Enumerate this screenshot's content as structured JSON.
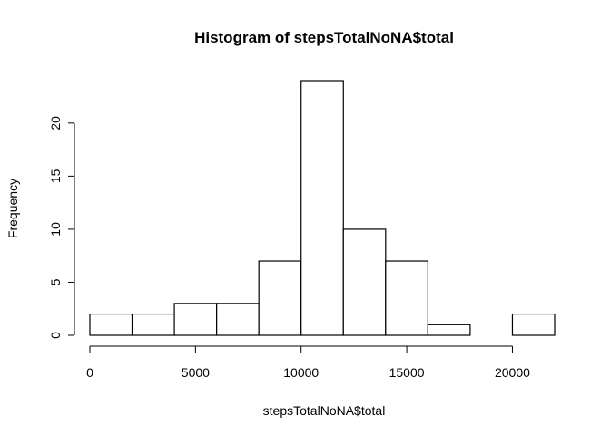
{
  "chart_data": {
    "type": "bar",
    "title": "Histogram of stepsTotalNoNA$total",
    "xlabel": "stepsTotalNoNA$total",
    "ylabel": "Frequency",
    "bin_edges": [
      0,
      2000,
      4000,
      6000,
      8000,
      10000,
      12000,
      14000,
      16000,
      18000,
      20000,
      22000
    ],
    "values": [
      2,
      2,
      3,
      3,
      7,
      24,
      10,
      7,
      1,
      0,
      2
    ],
    "xlim": [
      0,
      22000
    ],
    "ylim": [
      0,
      24
    ],
    "x_ticks": [
      0,
      5000,
      10000,
      15000,
      20000
    ],
    "x_tick_labels": [
      "0",
      "5000",
      "10000",
      "15000",
      "20000"
    ],
    "y_ticks": [
      0,
      5,
      10,
      15,
      20
    ],
    "y_tick_labels": [
      "0",
      "5",
      "10",
      "15",
      "20"
    ],
    "grid": false,
    "legend": "none",
    "colors": {
      "bar_fill": "#ffffff",
      "bar_stroke": "#000000"
    }
  }
}
